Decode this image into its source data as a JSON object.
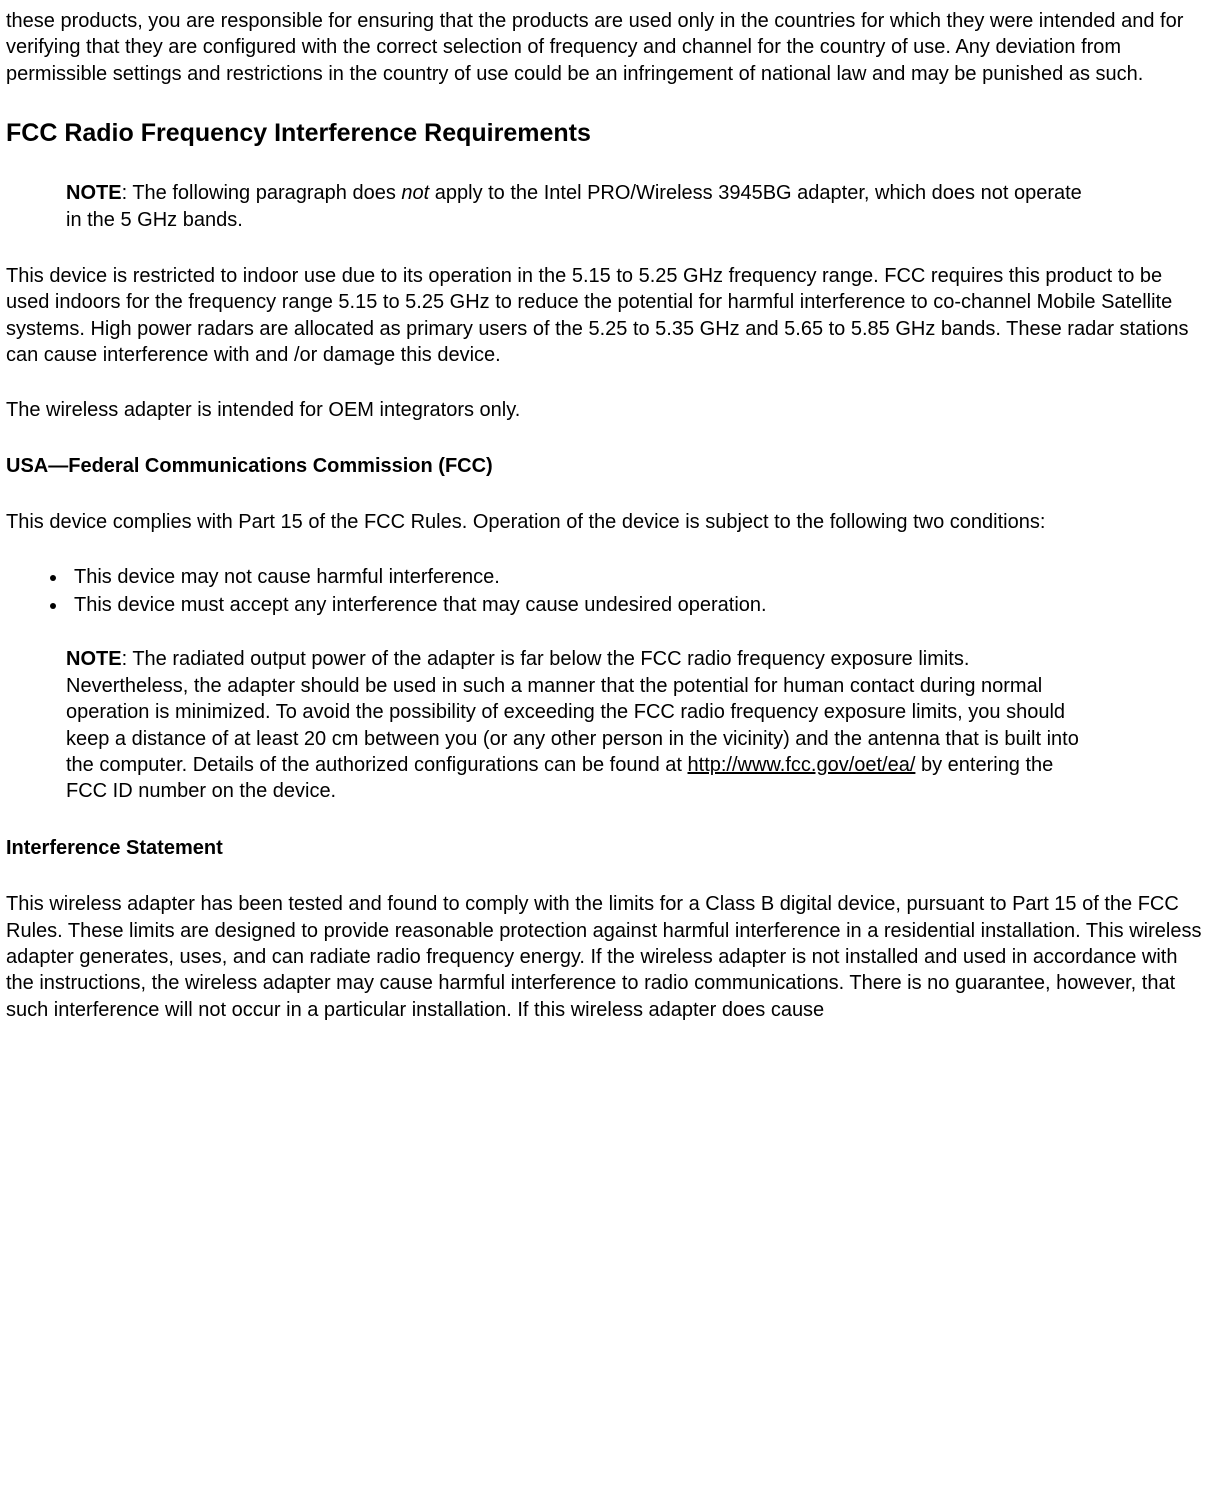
{
  "intro_paragraph": "these products, you are responsible for ensuring that the products are used only in the countries for which they were intended and for verifying that they are configured with the correct selection of frequency and channel for the country of use. Any deviation from permissible settings and restrictions in the country of use could be an infringement of national law and may be punished as such.",
  "heading_fcc_req": "FCC Radio Frequency Interference Requirements",
  "note1_label": "NOTE",
  "note1_before": ": The following paragraph does ",
  "note1_italic": "not",
  "note1_after": " apply to the Intel PRO/Wireless 3945BG adapter, which does not operate in the 5 GHz bands.",
  "para_indoor": "This device is restricted to indoor use due to its operation in the 5.15 to 5.25 GHz frequency range. FCC requires this product to be used indoors for the frequency range 5.15 to 5.25 GHz to reduce the potential for harmful interference to co-channel Mobile Satellite systems. High power radars are allocated as primary users of the 5.25 to 5.35 GHz and 5.65 to 5.85 GHz bands. These radar stations can cause interference with and /or damage this device.",
  "para_oem": "The wireless adapter is intended for OEM integrators only.",
  "heading_usa_fcc": "USA—Federal Communications Commission (FCC)",
  "para_complies": "This device complies with Part 15 of the FCC Rules. Operation of the device is subject to the following two conditions:",
  "bullets": [
    "This device may not cause harmful interference.",
    "This device must accept any interference that may cause undesired operation."
  ],
  "note2_label": "NOTE",
  "note2_before": ": The radiated output power of the adapter is far below the FCC radio frequency exposure limits. Nevertheless, the adapter should be used in such a manner that the potential for human contact during normal operation is minimized. To avoid the possibility of exceeding the FCC radio frequency exposure limits, you should keep a distance of at least 20 cm between you (or any other person in the vicinity) and the antenna that is built into the computer. Details of the authorized configurations can be found at ",
  "note2_link_text": "http://www.fcc.gov/oet/ea/",
  "note2_link_href": "http://www.fcc.gov/oet/ea/",
  "note2_after": " by entering the FCC ID number on the device.",
  "heading_interference": "Interference Statement",
  "para_interference": "This wireless adapter has been tested and found to comply with the limits for a Class B digital device, pursuant to Part 15 of the FCC Rules. These limits are designed to provide reasonable protection against harmful interference in a residential installation. This wireless adapter generates, uses, and can radiate radio frequency energy. If the wireless adapter is not installed and used in accordance with the instructions, the wireless adapter may cause harmful interference to radio communications. There is no guarantee, however, that such interference will not occur in a particular installation. If this wireless adapter does cause"
}
